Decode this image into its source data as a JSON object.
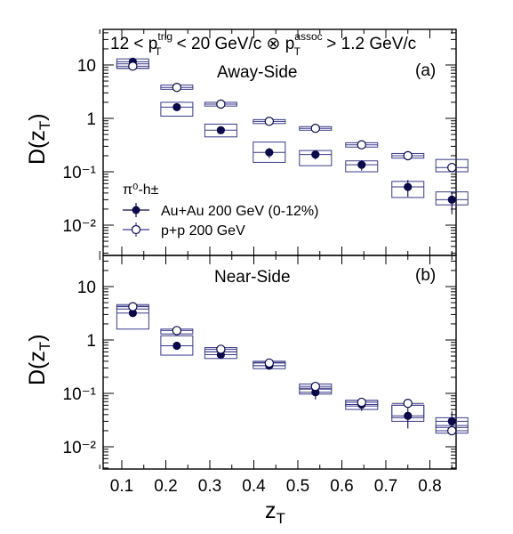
{
  "figure": {
    "kinematics": {
      "pre": "12 < p",
      "sub1": "T",
      "sup1": "trig",
      "mid": " < 20 GeV/c ⊗ p",
      "sub2": "T",
      "sup2": "assoc",
      "post": " > 1.2 GeV/c"
    },
    "legend": {
      "header": "π⁰-h±",
      "entries": [
        "Au+Au 200 GeV (0-12%)",
        "p+p 200 GeV"
      ]
    },
    "colors": {
      "marker": "#0a0a4a",
      "box": "#3a3a8a",
      "axis": "#000000"
    }
  },
  "chart_data": [
    {
      "type": "scatter",
      "panel_label": "(a)",
      "panel_title": "Away-Side",
      "ylabel": "D(z_T)",
      "y_scale": "log",
      "xlim": [
        0.05,
        0.9
      ],
      "ylim": [
        0.003,
        40
      ],
      "x_ticks": [
        0.1,
        0.2,
        0.3,
        0.4,
        0.5,
        0.6,
        0.7,
        0.8
      ],
      "y_ticks": [
        {
          "value": 10,
          "label": "10"
        },
        {
          "value": 1,
          "label": "1"
        },
        {
          "value": 0.1,
          "label": "10⁻¹"
        },
        {
          "value": 0.01,
          "label": "10⁻²"
        }
      ],
      "series": [
        {
          "name": "Au+Au 200 GeV (0-12%)",
          "marker": "filled-circle",
          "points": [
            {
              "x": 0.125,
              "y": 11.5,
              "err_lo": 1.5,
              "err_hi": 1.8,
              "sys_lo": 8.7,
              "sys_hi": 13.0
            },
            {
              "x": 0.225,
              "y": 1.62,
              "err_lo": 0.15,
              "err_hi": 0.15,
              "sys_lo": 1.1,
              "sys_hi": 2.0
            },
            {
              "x": 0.325,
              "y": 0.6,
              "err_lo": 0.06,
              "err_hi": 0.06,
              "sys_lo": 0.45,
              "sys_hi": 0.78
            },
            {
              "x": 0.435,
              "y": 0.23,
              "err_lo": 0.05,
              "err_hi": 0.05,
              "sys_lo": 0.15,
              "sys_hi": 0.36
            },
            {
              "x": 0.54,
              "y": 0.21,
              "err_lo": 0.04,
              "err_hi": 0.04,
              "sys_lo": 0.13,
              "sys_hi": 0.25
            },
            {
              "x": 0.645,
              "y": 0.135,
              "err_lo": 0.03,
              "err_hi": 0.03,
              "sys_lo": 0.1,
              "sys_hi": 0.16
            },
            {
              "x": 0.75,
              "y": 0.052,
              "err_lo": 0.018,
              "err_hi": 0.018,
              "sys_lo": 0.033,
              "sys_hi": 0.066
            },
            {
              "x": 0.85,
              "y": 0.03,
              "err_lo": 0.014,
              "err_hi": 0.012,
              "sys_lo": 0.024,
              "sys_hi": 0.042
            }
          ]
        },
        {
          "name": "p+p 200 GeV",
          "marker": "open-circle",
          "points": [
            {
              "x": 0.125,
              "y": 9.5,
              "err_lo": 0.3,
              "err_hi": 0.3,
              "sys_lo": 8.6,
              "sys_hi": 10.5
            },
            {
              "x": 0.225,
              "y": 3.8,
              "err_lo": 0.1,
              "err_hi": 0.1,
              "sys_lo": 3.5,
              "sys_hi": 4.2
            },
            {
              "x": 0.325,
              "y": 1.85,
              "err_lo": 0.05,
              "err_hi": 0.05,
              "sys_lo": 1.7,
              "sys_hi": 2.0
            },
            {
              "x": 0.435,
              "y": 0.88,
              "err_lo": 0.03,
              "err_hi": 0.03,
              "sys_lo": 0.8,
              "sys_hi": 0.95
            },
            {
              "x": 0.54,
              "y": 0.65,
              "err_lo": 0.02,
              "err_hi": 0.02,
              "sys_lo": 0.6,
              "sys_hi": 0.7
            },
            {
              "x": 0.645,
              "y": 0.32,
              "err_lo": 0.015,
              "err_hi": 0.015,
              "sys_lo": 0.29,
              "sys_hi": 0.35
            },
            {
              "x": 0.75,
              "y": 0.2,
              "err_lo": 0.01,
              "err_hi": 0.01,
              "sys_lo": 0.18,
              "sys_hi": 0.22
            },
            {
              "x": 0.85,
              "y": 0.12,
              "err_lo": 0.01,
              "err_hi": 0.01,
              "sys_lo": 0.1,
              "sys_hi": 0.17
            }
          ]
        }
      ]
    },
    {
      "type": "scatter",
      "panel_label": "(b)",
      "panel_title": "Near-Side",
      "ylabel": "D(z_T)",
      "xlabel": "z_T",
      "y_scale": "log",
      "xlim": [
        0.05,
        0.9
      ],
      "ylim": [
        0.003,
        40
      ],
      "x_ticks": [
        0.1,
        0.2,
        0.3,
        0.4,
        0.5,
        0.6,
        0.7,
        0.8
      ],
      "y_ticks": [
        {
          "value": 10,
          "label": "10"
        },
        {
          "value": 1,
          "label": "1"
        },
        {
          "value": 0.1,
          "label": "10⁻¹"
        },
        {
          "value": 0.01,
          "label": "10⁻²"
        }
      ],
      "series": [
        {
          "name": "Au+Au 200 GeV (0-12%)",
          "marker": "filled-circle",
          "points": [
            {
              "x": 0.125,
              "y": 3.2,
              "err_lo": 0.2,
              "err_hi": 0.2,
              "sys_lo": 1.6,
              "sys_hi": 4.3
            },
            {
              "x": 0.225,
              "y": 0.78,
              "err_lo": 0.05,
              "err_hi": 0.05,
              "sys_lo": 0.52,
              "sys_hi": 1.2
            },
            {
              "x": 0.325,
              "y": 0.53,
              "err_lo": 0.04,
              "err_hi": 0.04,
              "sys_lo": 0.45,
              "sys_hi": 0.6
            },
            {
              "x": 0.435,
              "y": 0.33,
              "err_lo": 0.03,
              "err_hi": 0.03,
              "sys_lo": 0.29,
              "sys_hi": 0.38
            },
            {
              "x": 0.54,
              "y": 0.105,
              "err_lo": 0.028,
              "err_hi": 0.02,
              "sys_lo": 0.097,
              "sys_hi": 0.125
            },
            {
              "x": 0.645,
              "y": 0.062,
              "err_lo": 0.015,
              "err_hi": 0.012,
              "sys_lo": 0.05,
              "sys_hi": 0.074
            },
            {
              "x": 0.75,
              "y": 0.038,
              "err_lo": 0.016,
              "err_hi": 0.016,
              "sys_lo": 0.03,
              "sys_hi": 0.06
            },
            {
              "x": 0.85,
              "y": 0.03,
              "err_lo": 0.012,
              "err_hi": 0.016,
              "sys_lo": 0.023,
              "sys_hi": 0.035
            }
          ]
        },
        {
          "name": "p+p 200 GeV",
          "marker": "open-circle",
          "points": [
            {
              "x": 0.125,
              "y": 4.2,
              "err_lo": 0.2,
              "err_hi": 0.2,
              "sys_lo": 3.8,
              "sys_hi": 4.6
            },
            {
              "x": 0.225,
              "y": 1.5,
              "err_lo": 0.05,
              "err_hi": 0.05,
              "sys_lo": 1.3,
              "sys_hi": 1.6
            },
            {
              "x": 0.325,
              "y": 0.67,
              "err_lo": 0.02,
              "err_hi": 0.02,
              "sys_lo": 0.6,
              "sys_hi": 0.72
            },
            {
              "x": 0.435,
              "y": 0.37,
              "err_lo": 0.01,
              "err_hi": 0.01,
              "sys_lo": 0.33,
              "sys_hi": 0.4
            },
            {
              "x": 0.54,
              "y": 0.135,
              "err_lo": 0.005,
              "err_hi": 0.005,
              "sys_lo": 0.12,
              "sys_hi": 0.15
            },
            {
              "x": 0.645,
              "y": 0.068,
              "err_lo": 0.004,
              "err_hi": 0.004,
              "sys_lo": 0.058,
              "sys_hi": 0.074
            },
            {
              "x": 0.75,
              "y": 0.065,
              "err_lo": 0.004,
              "err_hi": 0.004,
              "sys_lo": 0.035,
              "sys_hi": 0.06
            },
            {
              "x": 0.85,
              "y": 0.02,
              "err_lo": 0.003,
              "err_hi": 0.003,
              "sys_lo": 0.018,
              "sys_hi": 0.025
            }
          ]
        }
      ]
    }
  ]
}
